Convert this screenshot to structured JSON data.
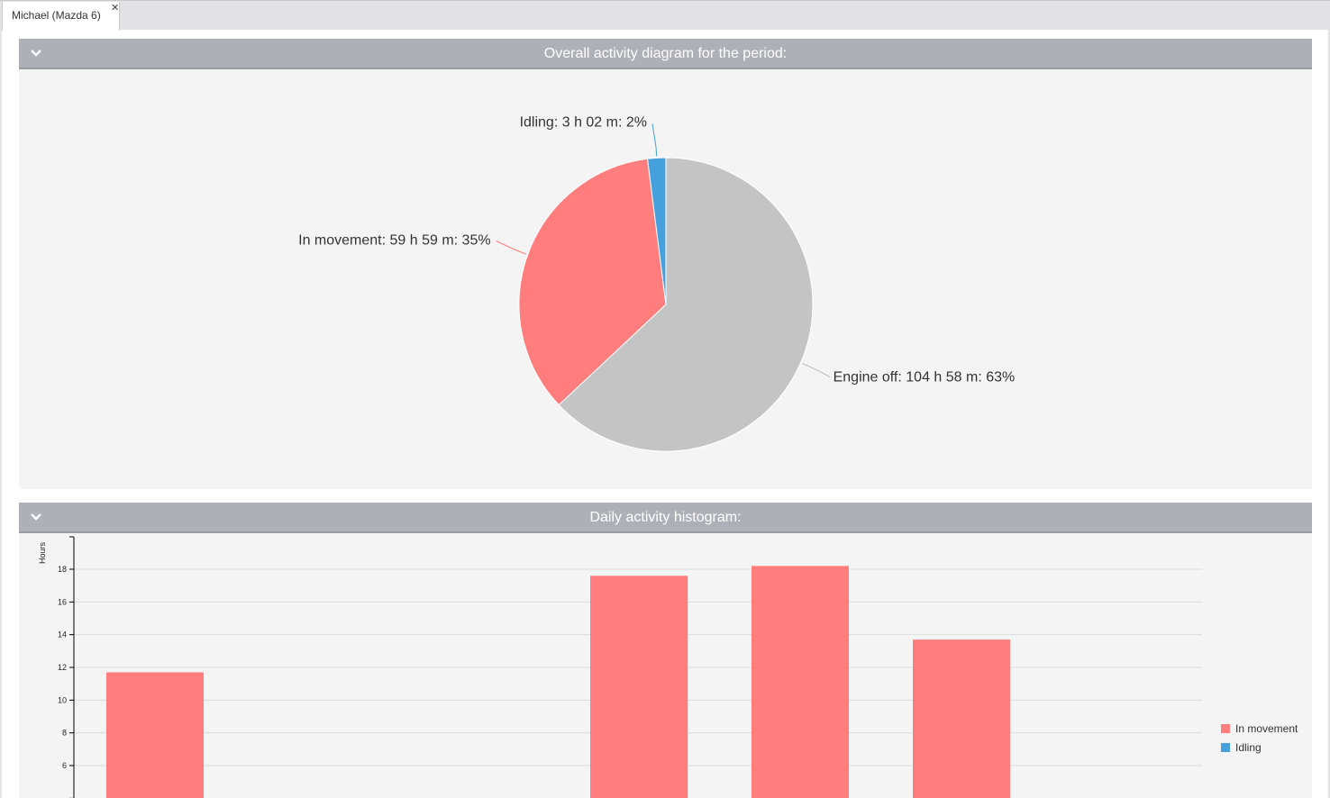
{
  "tab": {
    "label": "Michael (Mazda 6)",
    "close_icon": "close-icon"
  },
  "panels": {
    "overall": {
      "title": "Overall activity diagram for the period:",
      "toggle_icon": "chevron-down-icon"
    },
    "daily": {
      "title": "Daily activity histogram:",
      "toggle_icon": "chevron-down-icon"
    }
  },
  "chart_data": [
    {
      "type": "pie",
      "slices": [
        {
          "label": "Engine off: 104 h 58 m: 63%",
          "value": 63,
          "color": "#c4c4c4"
        },
        {
          "label": "In movement: 59 h 59 m: 35%",
          "value": 35,
          "color": "#ff7d7c"
        },
        {
          "label": "Idling: 3 h 02 m: 2%",
          "value": 2,
          "color": "#45a0db"
        }
      ]
    },
    {
      "type": "bar",
      "ylabel": "Hours",
      "yticks": [
        6,
        8,
        10,
        12,
        14,
        16,
        18
      ],
      "ylim_visible": [
        4.5,
        20
      ],
      "grid": true,
      "legend_placement": "right",
      "series": [
        {
          "name": "In movement",
          "color": "#ff7d7c",
          "values": [
            11.7,
            null,
            null,
            17.6,
            18.2,
            13.7,
            null
          ]
        },
        {
          "name": "Idling",
          "color": "#45a0db",
          "values": [
            null,
            null,
            null,
            null,
            null,
            null,
            null
          ]
        }
      ]
    }
  ]
}
